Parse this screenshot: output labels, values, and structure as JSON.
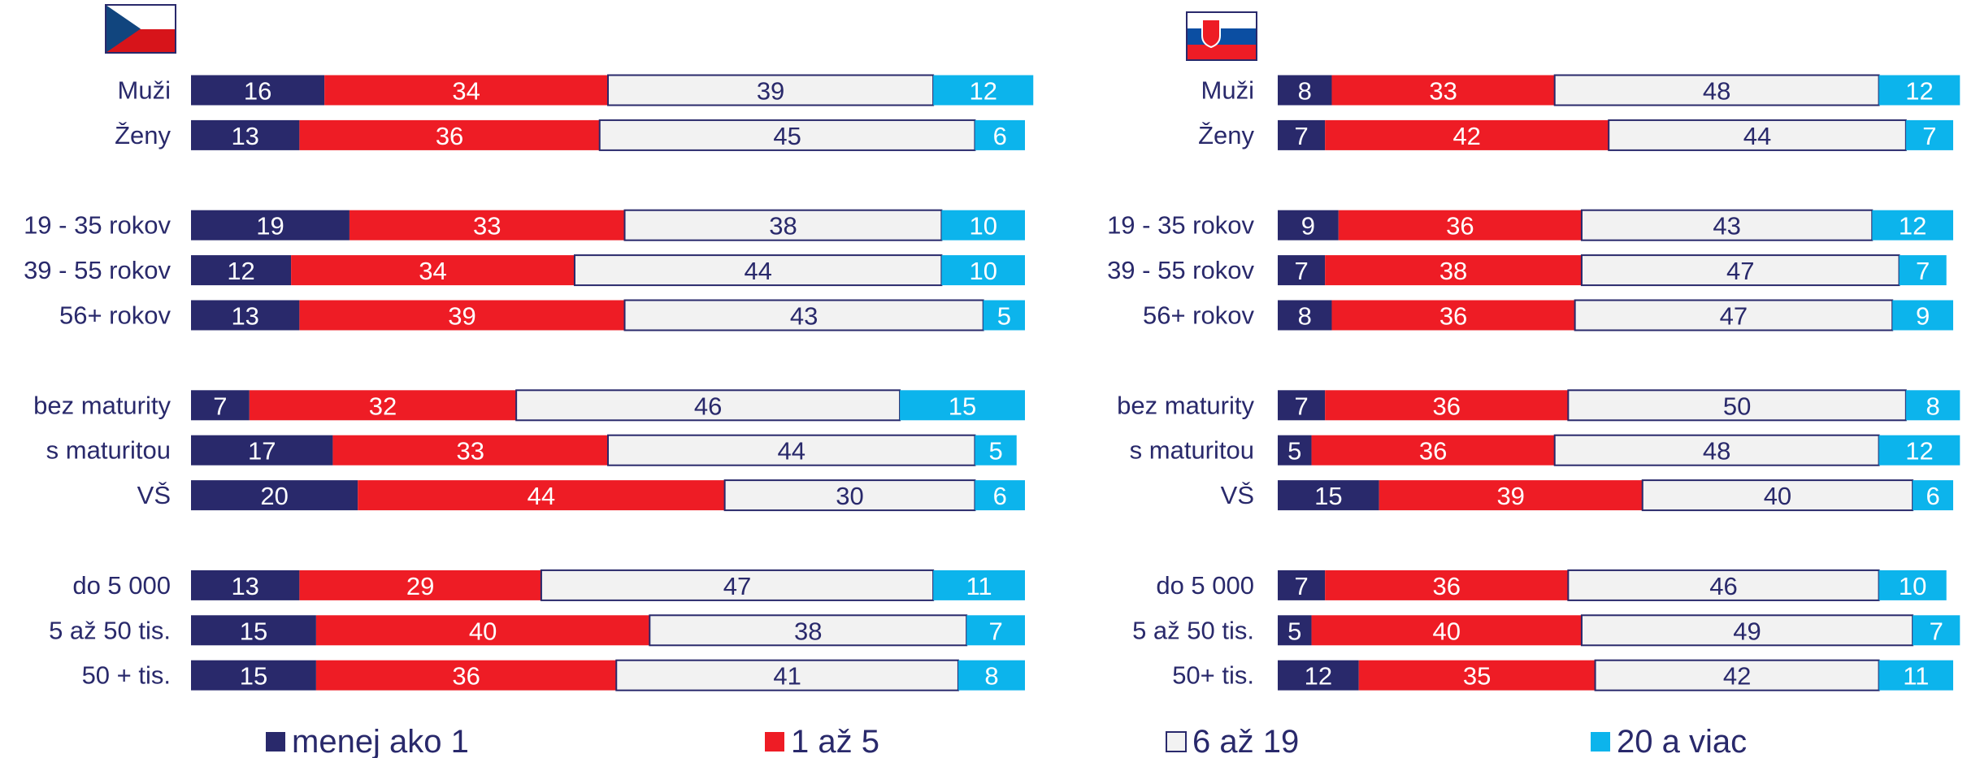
{
  "chart_data": [
    {
      "type": "stacked-bar-horizontal",
      "categories": [
        "Muži",
        "Ženy",
        null,
        "19 - 35 rokov",
        "39 - 55 rokov",
        "56+ rokov",
        null,
        "bez maturity",
        "s maturitou",
        "VŠ",
        null,
        "do 5 000",
        "5 až 50 tis.",
        "50 + tis."
      ],
      "xlim": [
        0,
        100
      ],
      "series": [
        {
          "name": "menej ako 1",
          "color": "#29296b",
          "values": [
            16,
            13,
            null,
            19,
            12,
            13,
            null,
            7,
            17,
            20,
            null,
            13,
            15,
            15
          ]
        },
        {
          "name": "1 až 5",
          "color": "#ee1c25",
          "values": [
            34,
            36,
            null,
            33,
            34,
            39,
            null,
            32,
            33,
            44,
            null,
            29,
            40,
            36
          ]
        },
        {
          "name": "6 až 19",
          "color": "#f2f2f2",
          "values": [
            39,
            45,
            null,
            38,
            44,
            43,
            null,
            46,
            44,
            30,
            null,
            47,
            38,
            41
          ]
        },
        {
          "name": "20 a viac",
          "color": "#0cb4ec",
          "values": [
            12,
            6,
            null,
            10,
            10,
            5,
            null,
            15,
            5,
            6,
            null,
            11,
            7,
            8
          ]
        }
      ]
    },
    {
      "type": "stacked-bar-horizontal",
      "categories": [
        "Muži",
        "Ženy",
        null,
        "19 - 35 rokov",
        "39 - 55 rokov",
        "56+ rokov",
        null,
        "bez maturity",
        "s maturitou",
        "VŠ",
        null,
        "do 5 000",
        "5 až 50 tis.",
        "50+ tis."
      ],
      "xlim": [
        0,
        100
      ],
      "series": [
        {
          "name": "menej ako 1",
          "color": "#29296b",
          "values": [
            8,
            7,
            null,
            9,
            7,
            8,
            null,
            7,
            5,
            15,
            null,
            7,
            5,
            12
          ]
        },
        {
          "name": "1 až 5",
          "color": "#ee1c25",
          "values": [
            33,
            42,
            null,
            36,
            38,
            36,
            null,
            36,
            36,
            39,
            null,
            36,
            40,
            35
          ]
        },
        {
          "name": "6 až 19",
          "color": "#f2f2f2",
          "values": [
            48,
            44,
            null,
            43,
            47,
            47,
            null,
            50,
            48,
            40,
            null,
            46,
            49,
            42
          ]
        },
        {
          "name": "20 a viac",
          "color": "#0cb4ec",
          "values": [
            12,
            7,
            null,
            12,
            7,
            9,
            null,
            8,
            12,
            6,
            null,
            10,
            7,
            11
          ]
        }
      ]
    }
  ]
}
